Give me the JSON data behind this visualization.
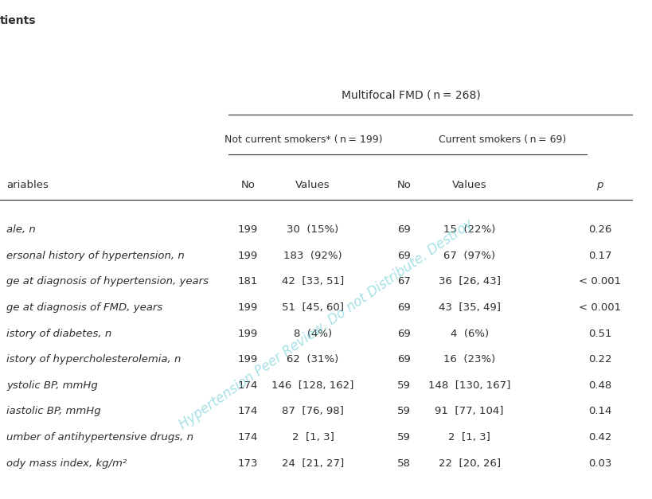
{
  "title_top": "tients",
  "header1": "Multifocal FMD ( n = 268)",
  "header2a": "Not current smokers* ( n = 199)",
  "header2b": "Current smokers ( n = 69)",
  "col_headers": [
    "No",
    "Values",
    "No",
    "Values",
    "p"
  ],
  "row_label_prefix": "ariables",
  "rows": [
    {
      "variable": "ale, n",
      "no1": "199",
      "val1": "30  (15%)",
      "no2": "69",
      "val2": "15  (22%)",
      "p": "0.26"
    },
    {
      "variable": "ersonal history of hypertension, n",
      "no1": "199",
      "val1": "183  (92%)",
      "no2": "69",
      "val2": "67  (97%)",
      "p": "0.17"
    },
    {
      "variable": "ge at diagnosis of hypertension, years",
      "no1": "181",
      "val1": "42  [33, 51]",
      "no2": "67",
      "val2": "36  [26, 43]",
      "p": "< 0.001"
    },
    {
      "variable": "ge at diagnosis of FMD, years",
      "no1": "199",
      "val1": "51  [45, 60]",
      "no2": "69",
      "val2": "43  [35, 49]",
      "p": "< 0.001"
    },
    {
      "variable": "istory of diabetes, n",
      "no1": "199",
      "val1": "8  (4%)",
      "no2": "69",
      "val2": "4  (6%)",
      "p": "0.51"
    },
    {
      "variable": "istory of hypercholesterolemia, n",
      "no1": "199",
      "val1": "62  (31%)",
      "no2": "69",
      "val2": "16  (23%)",
      "p": "0.22"
    },
    {
      "variable": "ystolic BP, mmHg",
      "no1": "174",
      "val1": "146  [128, 162]",
      "no2": "59",
      "val2": "148  [130, 167]",
      "p": "0.48"
    },
    {
      "variable": "iastolic BP, mmHg",
      "no1": "174",
      "val1": "87  [76, 98]",
      "no2": "59",
      "val2": "91  [77, 104]",
      "p": "0.14"
    },
    {
      "variable": "umber of antihypertensive drugs, n",
      "no1": "174",
      "val1": "2  [1, 3]",
      "no2": "59",
      "val2": "2  [1, 3]",
      "p": "0.42"
    },
    {
      "variable": "ody mass index, kg/m²",
      "no1": "173",
      "val1": "24  [21, 27]",
      "no2": "58",
      "val2": "22  [20, 26]",
      "p": "0.03"
    }
  ],
  "watermark_text": "Hypertension Peer Review. Do not Distribute. Destroy",
  "watermark_color": "#5bc8d0",
  "background_color": "#ffffff",
  "text_color": "#2d2d2d",
  "font_size": 9.5,
  "title_font_size": 10
}
